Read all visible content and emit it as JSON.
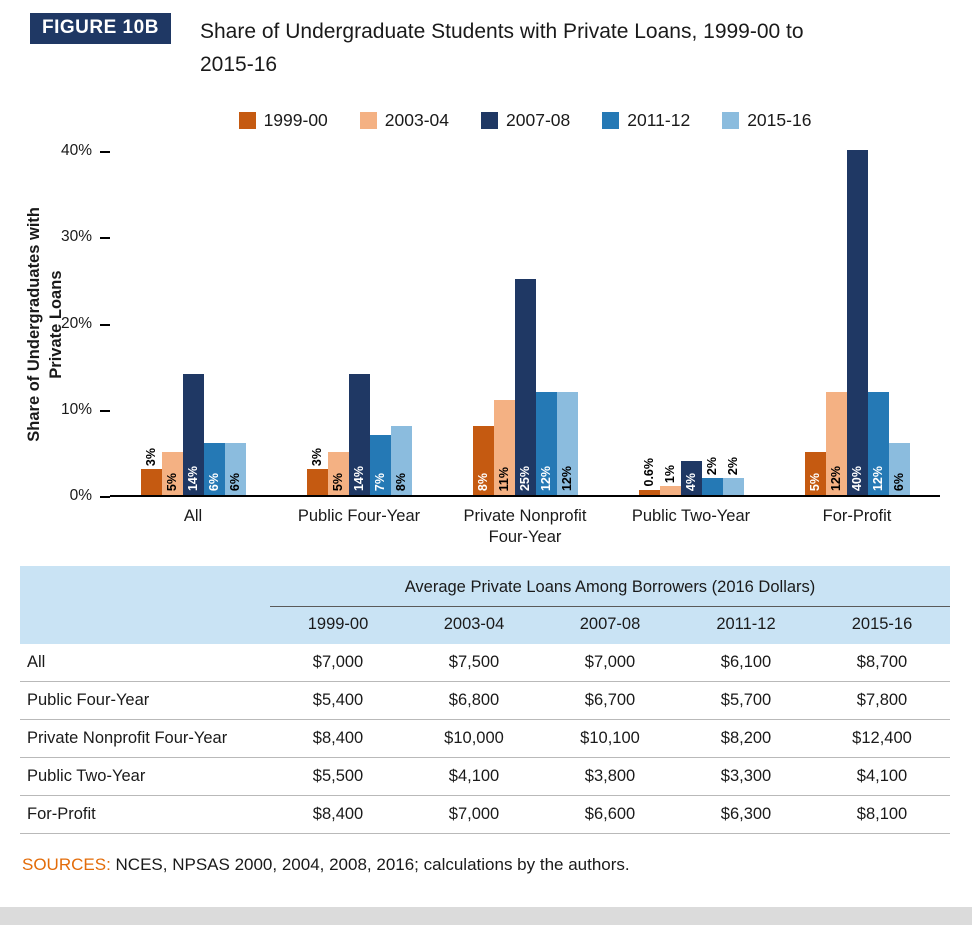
{
  "figure": {
    "badge": "FIGURE 10B",
    "title_line1": "Share of Undergraduate Students with Private Loans, 1999-00 to",
    "title_line2": "2015-16",
    "ylabel_line1": "Share of Undergraduates with",
    "ylabel_line2": "Private Loans"
  },
  "colors": {
    "navy": "#1F3864",
    "dark_orange": "#C55A11",
    "peach": "#F4B183",
    "medium_blue": "#2579B5",
    "light_blue": "#8BBCDE",
    "table_header_bg": "#C9E3F4",
    "sources_orange": "#E36C09",
    "footer_gray": "#DBDBDB"
  },
  "chart_data": {
    "type": "bar",
    "title": "Share of Undergraduate Students with Private Loans, 1999-00 to 2015-16",
    "xlabel": "",
    "ylabel": "Share of Undergraduates with Private Loans",
    "ylim": [
      0,
      40
    ],
    "grid": false,
    "legend_position": "top",
    "ytick_values": [
      0,
      10,
      20,
      30,
      40
    ],
    "ytick_labels": [
      "0%",
      "10%",
      "20%",
      "30%",
      "40%"
    ],
    "categories": [
      "All",
      "Public Four-Year",
      "Private Nonprofit Four-Year",
      "Public Two-Year",
      "For-Profit"
    ],
    "series": [
      {
        "name": "1999-00",
        "color": "#C55A11",
        "label_color": "#FFFFFF",
        "values": [
          3,
          3,
          8,
          0.6,
          5
        ],
        "labels": [
          "3%",
          "3%",
          "8%",
          "0.6%",
          "5%"
        ]
      },
      {
        "name": "2003-04",
        "color": "#F4B183",
        "label_color": "#000000",
        "values": [
          5,
          5,
          11,
          1,
          12
        ],
        "labels": [
          "5%",
          "5%",
          "11%",
          "1%",
          "12%"
        ]
      },
      {
        "name": "2007-08",
        "color": "#1F3864",
        "label_color": "#FFFFFF",
        "values": [
          14,
          14,
          25,
          4,
          40
        ],
        "labels": [
          "14%",
          "14%",
          "25%",
          "4%",
          "40%"
        ]
      },
      {
        "name": "2011-12",
        "color": "#2579B5",
        "label_color": "#FFFFFF",
        "values": [
          6,
          7,
          12,
          2,
          12
        ],
        "labels": [
          "6%",
          "7%",
          "12%",
          "2%",
          "12%"
        ]
      },
      {
        "name": "2015-16",
        "color": "#8BBCDE",
        "label_color": "#000000",
        "values": [
          6,
          8,
          12,
          2,
          6
        ],
        "labels": [
          "6%",
          "8%",
          "12%",
          "2%",
          "6%"
        ]
      }
    ]
  },
  "table": {
    "title": "Average Private Loans Among Borrowers (2016 Dollars)",
    "columns": [
      "1999-00",
      "2003-04",
      "2007-08",
      "2011-12",
      "2015-16"
    ],
    "rows": [
      {
        "label": "All",
        "values": [
          "$7,000",
          "$7,500",
          "$7,000",
          "$6,100",
          "$8,700"
        ]
      },
      {
        "label": "Public Four-Year",
        "values": [
          "$5,400",
          "$6,800",
          "$6,700",
          "$5,700",
          "$7,800"
        ]
      },
      {
        "label": "Private Nonprofit Four-Year",
        "values": [
          "$8,400",
          "$10,000",
          "$10,100",
          "$8,200",
          "$12,400"
        ]
      },
      {
        "label": "Public Two-Year",
        "values": [
          "$5,500",
          "$4,100",
          "$3,800",
          "$3,300",
          "$4,100"
        ]
      },
      {
        "label": "For-Profit",
        "values": [
          "$8,400",
          "$7,000",
          "$6,600",
          "$6,300",
          "$8,100"
        ]
      }
    ]
  },
  "sources": {
    "label": "SOURCES:",
    "text": "NCES, NPSAS 2000, 2004, 2008, 2016; calculations by the authors."
  }
}
